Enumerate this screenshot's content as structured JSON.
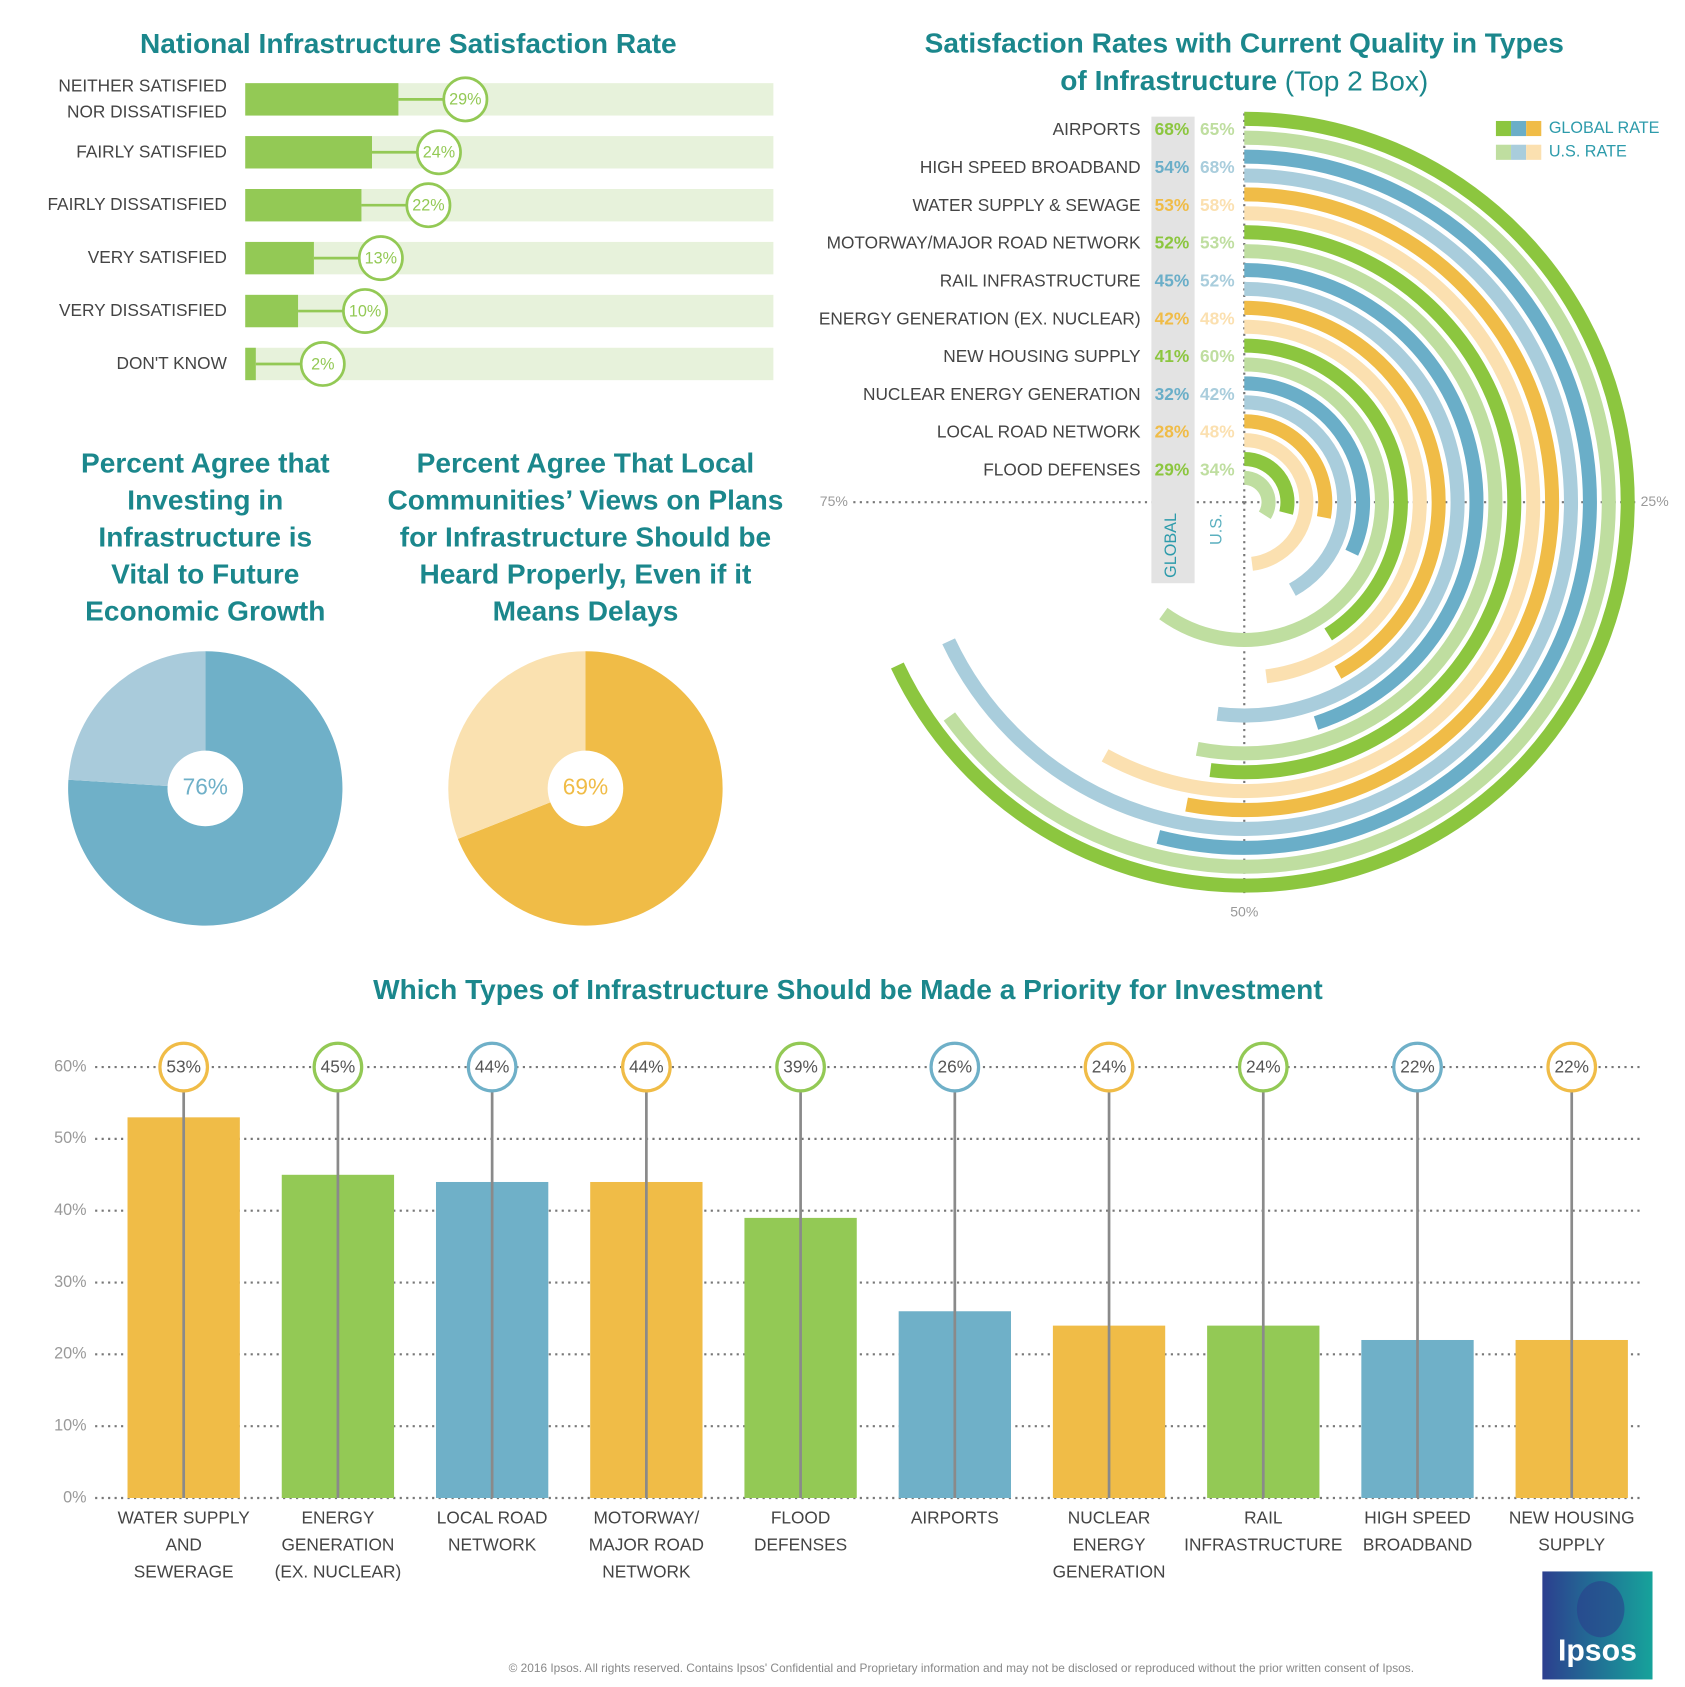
{
  "chart_data": [
    {
      "type": "hbar",
      "title": "National Infrastructure Satisfaction Rate",
      "categories": [
        "NEITHER SATISFIED NOR DISSATISFIED",
        "FAIRLY SATISFIED",
        "FAIRLY DISSATISFIED",
        "VERY SATISFIED",
        "VERY DISSATISFIED",
        "DON'T KNOW"
      ],
      "values": [
        29,
        24,
        22,
        13,
        10,
        2
      ],
      "value_labels": [
        "29%",
        "24%",
        "22%",
        "13%",
        "10%",
        "2%"
      ],
      "xlim": [
        0,
        100
      ],
      "color": "#93c955",
      "track_color": "#e7f2db"
    },
    {
      "type": "pie",
      "title": "Percent Agree that Investing in Infrastructure is Vital to Future Economic Growth",
      "values": [
        76,
        24
      ],
      "value_labels": [
        "76%",
        null
      ],
      "colors": [
        "#6fb0c8",
        "#a9cbdb"
      ]
    },
    {
      "type": "pie",
      "title": "Percent Agree That Local Communities’ Views on Plans for Infrastructure Should be Heard Properly, Even if it Means Delays",
      "values": [
        69,
        31
      ],
      "value_labels": [
        "69%",
        null
      ],
      "colors": [
        "#f0bc47",
        "#fae1b0"
      ]
    },
    {
      "type": "radial_bar",
      "title": "Satisfaction Rates with Current Quality in Types of Infrastructure",
      "subtitle": "(Top 2 Box)",
      "categories": [
        "AIRPORTS",
        "HIGH SPEED BROADBAND",
        "WATER SUPPLY & SEWAGE",
        "MOTORWAY/MAJOR ROAD NETWORK",
        "RAIL INFRASTRUCTURE",
        "ENERGY GENERATION (EX. NUCLEAR)",
        "NEW HOUSING SUPPLY",
        "NUCLEAR ENERGY GENERATION",
        "LOCAL ROAD NETWORK",
        "FLOOD DEFENSES"
      ],
      "series": [
        {
          "name": "GLOBAL RATE",
          "column_label": "GLOBAL",
          "values": [
            68,
            54,
            53,
            52,
            45,
            42,
            41,
            32,
            28,
            29
          ],
          "value_labels": [
            "68%",
            "54%",
            "53%",
            "52%",
            "45%",
            "42%",
            "41%",
            "32%",
            "28%",
            "29%"
          ],
          "colors": [
            "#8cc63f",
            "#6aaec8",
            "#f0bc47",
            "#8cc63f",
            "#6aaec8",
            "#f0bc47",
            "#8cc63f",
            "#6aaec8",
            "#f0bc47",
            "#8cc63f"
          ]
        },
        {
          "name": "U.S. RATE",
          "column_label": "U.S.",
          "values": [
            65,
            68,
            58,
            53,
            52,
            48,
            60,
            42,
            48,
            34
          ],
          "value_labels": [
            "65%",
            "68%",
            "58%",
            "53%",
            "52%",
            "48%",
            "60%",
            "42%",
            "48%",
            "34%"
          ],
          "colors": [
            "#bfdea0",
            "#a9cddc",
            "#fbe0b0",
            "#bfdea0",
            "#a9cddc",
            "#fbe0b0",
            "#bfdea0",
            "#a9cddc",
            "#fbe0b0",
            "#bfdea0"
          ]
        }
      ],
      "xlim": [
        0,
        100
      ],
      "xticks": [
        {
          "value": 25,
          "label": "25%"
        },
        {
          "value": 50,
          "label": "50%"
        },
        {
          "value": 75,
          "label": "75%"
        }
      ],
      "legend": "top-right"
    },
    {
      "type": "bar",
      "title": "Which Types of Infrastructure Should be Made a Priority for Investment",
      "categories": [
        "WATER SUPPLY AND SEWERAGE",
        "ENERGY GENERATION (EX. NUCLEAR)",
        "LOCAL ROAD NETWORK",
        "MOTORWAY/ MAJOR ROAD NETWORK",
        "FLOOD DEFENSES",
        "AIRPORTS",
        "NUCLEAR ENERGY GENERATION",
        "RAIL INFRASTRUCTURE",
        "HIGH SPEED BROADBAND",
        "NEW HOUSING SUPPLY"
      ],
      "values": [
        53,
        45,
        44,
        44,
        39,
        26,
        24,
        24,
        22,
        22
      ],
      "value_labels": [
        "53%",
        "45%",
        "44%",
        "44%",
        "39%",
        "26%",
        "24%",
        "24%",
        "22%",
        "22%"
      ],
      "colors": [
        "#f0bc47",
        "#93c955",
        "#6fb0c8",
        "#f0bc47",
        "#93c955",
        "#6fb0c8",
        "#f0bc47",
        "#93c955",
        "#6fb0c8",
        "#f0bc47"
      ],
      "ylim": [
        0,
        60
      ],
      "yticks": [
        {
          "value": 0,
          "label": "0%"
        },
        {
          "value": 10,
          "label": "10%"
        },
        {
          "value": 20,
          "label": "20%"
        },
        {
          "value": 30,
          "label": "30%"
        },
        {
          "value": 40,
          "label": "40%"
        },
        {
          "value": 50,
          "label": "50%"
        },
        {
          "value": 60,
          "label": "60%"
        }
      ],
      "grid": true
    }
  ],
  "footer": {
    "copyright": "© 2016 Ipsos.  All rights reserved. Contains Ipsos' Confidential and Proprietary information and may not be disclosed or reproduced without the prior written consent of Ipsos.",
    "logo": "Ipsos"
  }
}
